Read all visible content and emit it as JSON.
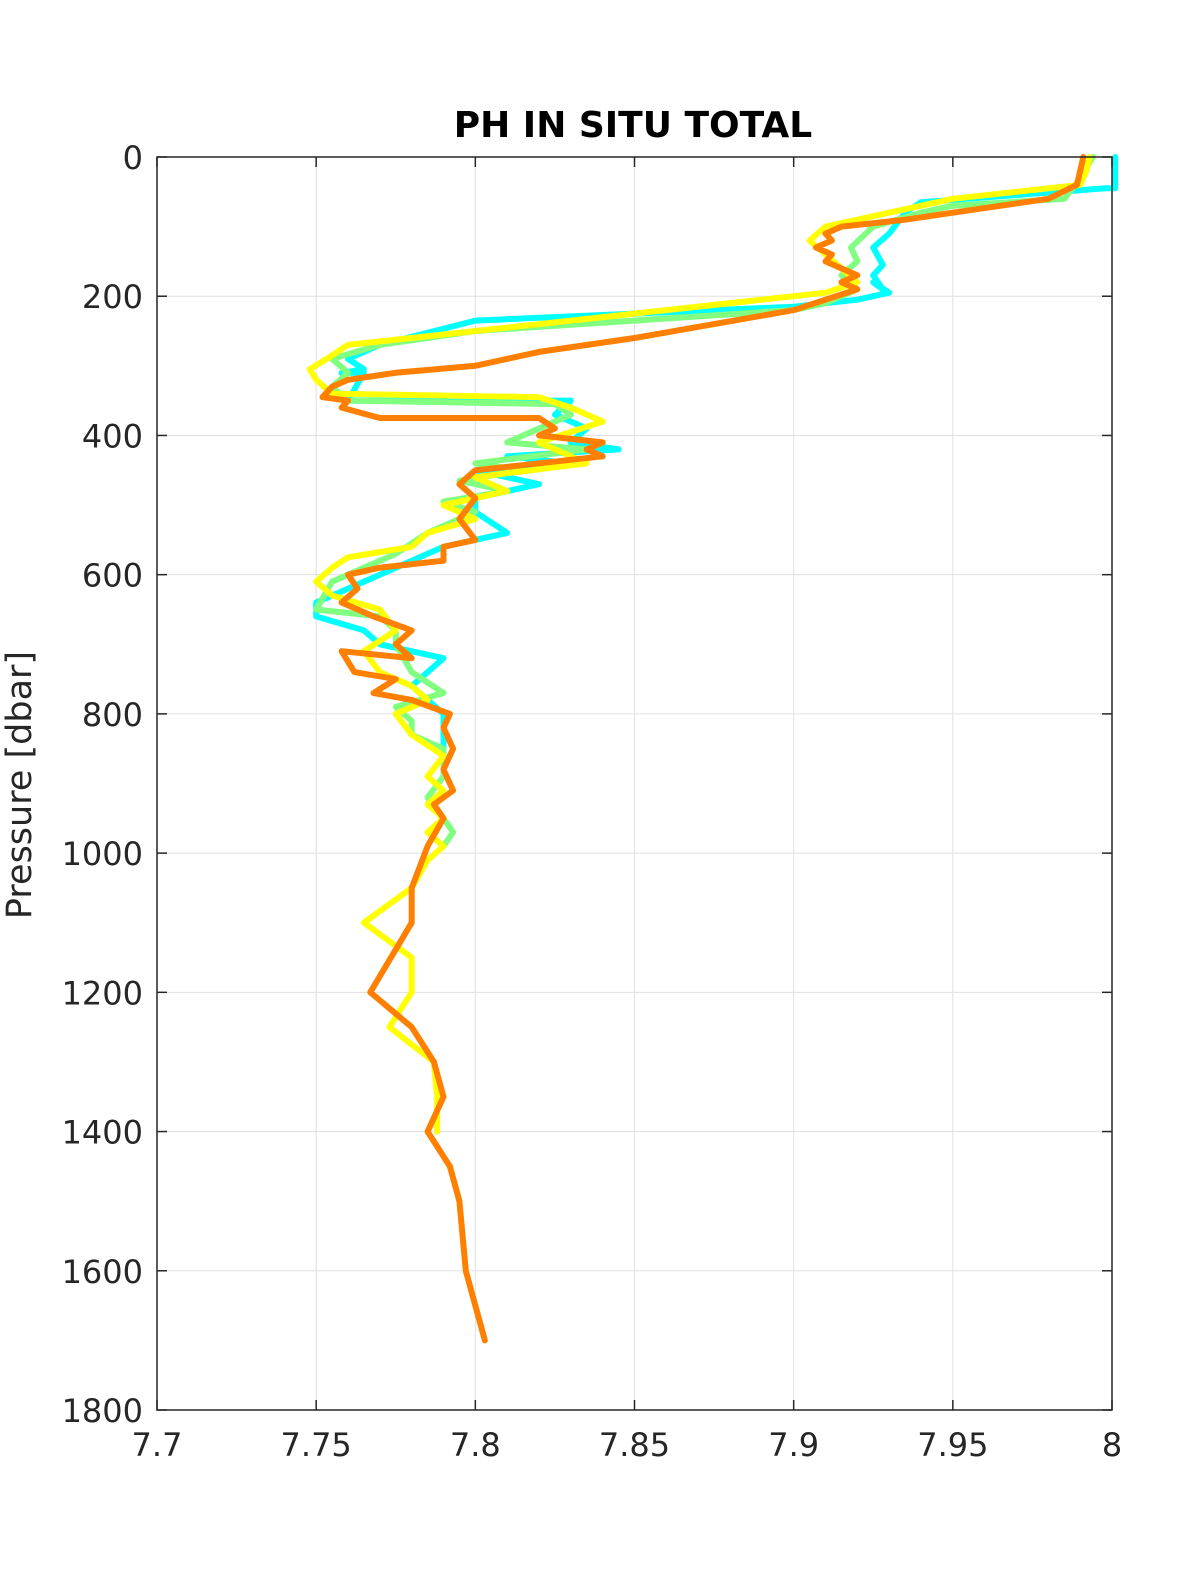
{
  "chart_data": {
    "type": "line",
    "title": "PH IN SITU TOTAL",
    "xlabel": "",
    "ylabel": "Pressure [dbar]",
    "xlim": [
      7.7,
      8.0
    ],
    "ylim": [
      0,
      1800
    ],
    "y_reversed": true,
    "grid": true,
    "xticks": [
      "7.7",
      "7.75",
      "7.8",
      "7.85",
      "7.9",
      "7.95",
      "8"
    ],
    "yticks": [
      "0",
      "200",
      "400",
      "600",
      "800",
      "1000",
      "1200",
      "1400",
      "1600",
      "1800"
    ],
    "series": [
      {
        "color": "#00ffff",
        "x": [
          8.001,
          8.001,
          7.998,
          7.94,
          7.935,
          7.93,
          7.925,
          7.928,
          7.925,
          7.928,
          7.925,
          7.93,
          7.92,
          7.9,
          7.85,
          7.8,
          7.77,
          7.76,
          7.765,
          7.758,
          7.765,
          7.76,
          7.83,
          7.825,
          7.835,
          7.83,
          7.845,
          7.81,
          7.83,
          7.8,
          7.82,
          7.8,
          7.8,
          7.81,
          7.79,
          7.78,
          7.77,
          7.76,
          7.75,
          7.75,
          7.765,
          7.77,
          7.79,
          7.78,
          7.79,
          7.79
        ],
        "y": [
          0,
          45,
          45,
          65,
          80,
          110,
          130,
          155,
          170,
          190,
          180,
          195,
          205,
          215,
          225,
          235,
          270,
          290,
          305,
          310,
          310,
          350,
          350,
          370,
          390,
          410,
          420,
          430,
          440,
          450,
          470,
          490,
          510,
          540,
          560,
          580,
          600,
          620,
          640,
          660,
          680,
          700,
          720,
          760,
          800,
          860
        ]
      },
      {
        "color": "#80ff80",
        "x": [
          7.994,
          7.99,
          7.985,
          7.95,
          7.94,
          7.925,
          7.918,
          7.92,
          7.915,
          7.92,
          7.91,
          7.9,
          7.85,
          7.8,
          7.77,
          7.755,
          7.76,
          7.755,
          7.76,
          7.825,
          7.83,
          7.82,
          7.81,
          7.835,
          7.8,
          7.815,
          7.795,
          7.81,
          7.79,
          7.8,
          7.785,
          7.775,
          7.765,
          7.755,
          7.75,
          7.77,
          7.775,
          7.775,
          7.78,
          7.79,
          7.775,
          7.78,
          7.78,
          7.79,
          7.79,
          7.79,
          7.785,
          7.79,
          7.793,
          7.79
        ],
        "y": [
          0,
          30,
          60,
          70,
          80,
          100,
          130,
          150,
          170,
          190,
          210,
          220,
          235,
          250,
          270,
          290,
          310,
          330,
          350,
          355,
          370,
          390,
          410,
          420,
          440,
          450,
          465,
          480,
          495,
          510,
          540,
          570,
          590,
          610,
          650,
          660,
          680,
          700,
          740,
          770,
          790,
          810,
          830,
          850,
          870,
          890,
          920,
          950,
          970,
          990
        ]
      },
      {
        "color": "#ffff00",
        "x": [
          7.993,
          7.992,
          7.99,
          7.95,
          7.93,
          7.91,
          7.905,
          7.91,
          7.915,
          7.92,
          7.91,
          7.9,
          7.86,
          7.82,
          7.79,
          7.76,
          7.755,
          7.748,
          7.75,
          7.755,
          7.82,
          7.83,
          7.84,
          7.82,
          7.835,
          7.8,
          7.81,
          7.79,
          7.8,
          7.785,
          7.78,
          7.76,
          7.755,
          7.75,
          7.755,
          7.77,
          7.775,
          7.765,
          7.77,
          7.78,
          7.785,
          7.775,
          7.78,
          7.79,
          7.785,
          7.79,
          7.785,
          7.79,
          7.785,
          7.79,
          7.785,
          7.78,
          7.765,
          7.78,
          7.78,
          7.773,
          7.787,
          7.788,
          7.788
        ],
        "y": [
          0,
          20,
          40,
          60,
          80,
          100,
          120,
          140,
          160,
          180,
          195,
          200,
          220,
          240,
          255,
          270,
          285,
          305,
          320,
          340,
          345,
          360,
          380,
          410,
          440,
          460,
          480,
          500,
          520,
          540,
          560,
          575,
          590,
          610,
          630,
          650,
          680,
          710,
          740,
          760,
          780,
          800,
          830,
          860,
          890,
          910,
          930,
          950,
          970,
          990,
          1010,
          1050,
          1100,
          1150,
          1200,
          1250,
          1300,
          1350,
          1400
        ]
      },
      {
        "color": "#ff8000",
        "x": [
          7.991,
          7.99,
          7.989,
          7.98,
          7.95,
          7.935,
          7.915,
          7.91,
          7.912,
          7.907,
          7.912,
          7.91,
          7.915,
          7.92,
          7.915,
          7.92,
          7.91,
          7.9,
          7.875,
          7.85,
          7.82,
          7.8,
          7.775,
          7.76,
          7.755,
          7.752,
          7.76,
          7.758,
          7.77,
          7.82,
          7.825,
          7.82,
          7.84,
          7.835,
          7.84,
          7.82,
          7.8,
          7.795,
          7.8,
          7.795,
          7.8,
          7.79,
          7.79,
          7.77,
          7.76,
          7.763,
          7.758,
          7.768,
          7.78,
          7.775,
          7.78,
          7.758,
          7.762,
          7.775,
          7.768,
          7.78,
          7.792,
          7.79,
          7.793,
          7.79,
          7.793,
          7.787,
          7.79,
          7.785,
          7.78,
          7.78,
          7.767,
          7.78,
          7.787,
          7.79,
          7.785,
          7.792,
          7.795,
          7.797,
          7.803
        ],
        "y": [
          0,
          20,
          40,
          60,
          80,
          90,
          100,
          110,
          120,
          130,
          140,
          150,
          160,
          170,
          180,
          190,
          205,
          220,
          240,
          260,
          280,
          300,
          310,
          320,
          330,
          345,
          350,
          360,
          375,
          375,
          390,
          400,
          410,
          420,
          430,
          440,
          450,
          470,
          490,
          520,
          550,
          560,
          580,
          590,
          600,
          620,
          640,
          660,
          680,
          700,
          720,
          710,
          740,
          750,
          770,
          780,
          800,
          820,
          850,
          880,
          910,
          930,
          950,
          990,
          1050,
          1100,
          1200,
          1250,
          1300,
          1350,
          1400,
          1450,
          1500,
          1600,
          1700
        ]
      }
    ]
  }
}
